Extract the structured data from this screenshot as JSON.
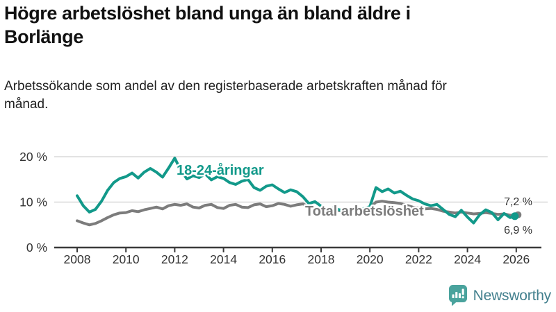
{
  "header": {
    "title": "Högre arbetslöshet bland unga än bland äldre i Borlänge",
    "subtitle": "Arbetssökande som andel av den registerbaserade arbetskraften månad för månad."
  },
  "chart_data": {
    "type": "line",
    "title": "Högre arbetslöshet bland unga än bland äldre i Borlänge",
    "subtitle": "Arbetssökande som andel av den registerbaserade arbetskraften månad för månad.",
    "grid": "horizontal",
    "legend": "inline-labels",
    "x_start": 2008,
    "x_step": 0.25,
    "x_axis": {
      "ticks": [
        2008,
        2010,
        2012,
        2014,
        2016,
        2018,
        2020,
        2022,
        2024,
        2026
      ],
      "tick_labels": [
        "2008",
        "2010",
        "2012",
        "2014",
        "2016",
        "2018",
        "2020",
        "2022",
        "2024",
        "2026"
      ]
    },
    "y_axis": {
      "ticks": [
        0,
        10,
        20
      ],
      "tick_labels": [
        "0 %",
        "10 %",
        "20 %"
      ],
      "range": [
        0,
        22
      ],
      "unit": "%"
    },
    "series": [
      {
        "name": "Total arbetslöshet",
        "color": "#7c7c7c",
        "end_label": "7,2 %",
        "end_value": 7.2,
        "values": [
          5.9,
          5.4,
          5.0,
          5.3,
          5.9,
          6.6,
          7.2,
          7.6,
          7.7,
          8.1,
          7.9,
          8.3,
          8.6,
          8.9,
          8.5,
          9.2,
          9.5,
          9.3,
          9.6,
          8.9,
          8.7,
          9.3,
          9.5,
          8.8,
          8.6,
          9.3,
          9.5,
          8.9,
          8.8,
          9.4,
          9.6,
          9.0,
          9.2,
          9.7,
          9.5,
          9.1,
          9.4,
          9.6,
          9.0,
          8.6,
          8.4,
          8.6,
          8.3,
          8.1,
          8.2,
          8.4,
          8.3,
          8.5,
          8.8,
          10.0,
          10.2,
          10.0,
          9.9,
          9.7,
          9.3,
          8.9,
          8.7,
          8.5,
          8.6,
          8.4,
          8.0,
          7.8,
          7.6,
          7.8,
          7.6,
          7.4,
          7.5,
          7.7,
          7.5,
          7.3,
          7.4,
          7.1,
          7.2
        ]
      },
      {
        "name": "18-24-åringar",
        "color": "#12998a",
        "end_label": "6,9 %",
        "end_value": 6.9,
        "values": [
          11.4,
          9.2,
          7.8,
          8.4,
          10.2,
          12.6,
          14.3,
          15.2,
          15.6,
          16.4,
          15.3,
          16.6,
          17.4,
          16.6,
          15.5,
          17.5,
          19.7,
          17.0,
          15.1,
          15.8,
          15.4,
          16.2,
          14.9,
          15.6,
          15.2,
          14.3,
          13.9,
          14.6,
          15.0,
          13.2,
          12.6,
          13.5,
          13.8,
          12.9,
          12.1,
          12.7,
          12.3,
          11.2,
          9.7,
          10.1,
          9.1,
          8.5,
          8.7,
          8.3,
          8.1,
          8.0,
          8.3,
          8.6,
          9.0,
          13.2,
          12.3,
          12.9,
          12.0,
          12.4,
          11.5,
          10.7,
          10.3,
          9.6,
          9.2,
          9.5,
          8.4,
          7.3,
          6.8,
          8.2,
          6.7,
          5.4,
          7.2,
          8.3,
          7.7,
          6.1,
          7.5,
          6.6,
          6.9
        ]
      }
    ]
  },
  "footer": {
    "brand": "Newsworthy"
  },
  "colors": {
    "accent_teal": "#12998a",
    "line_gray": "#7c7c7c",
    "grid": "#d8d8d8",
    "axis": "#3a3a3a",
    "text_dark": "#333333",
    "brand_icon": "#4aa39d",
    "brand_text": "#43808e"
  }
}
